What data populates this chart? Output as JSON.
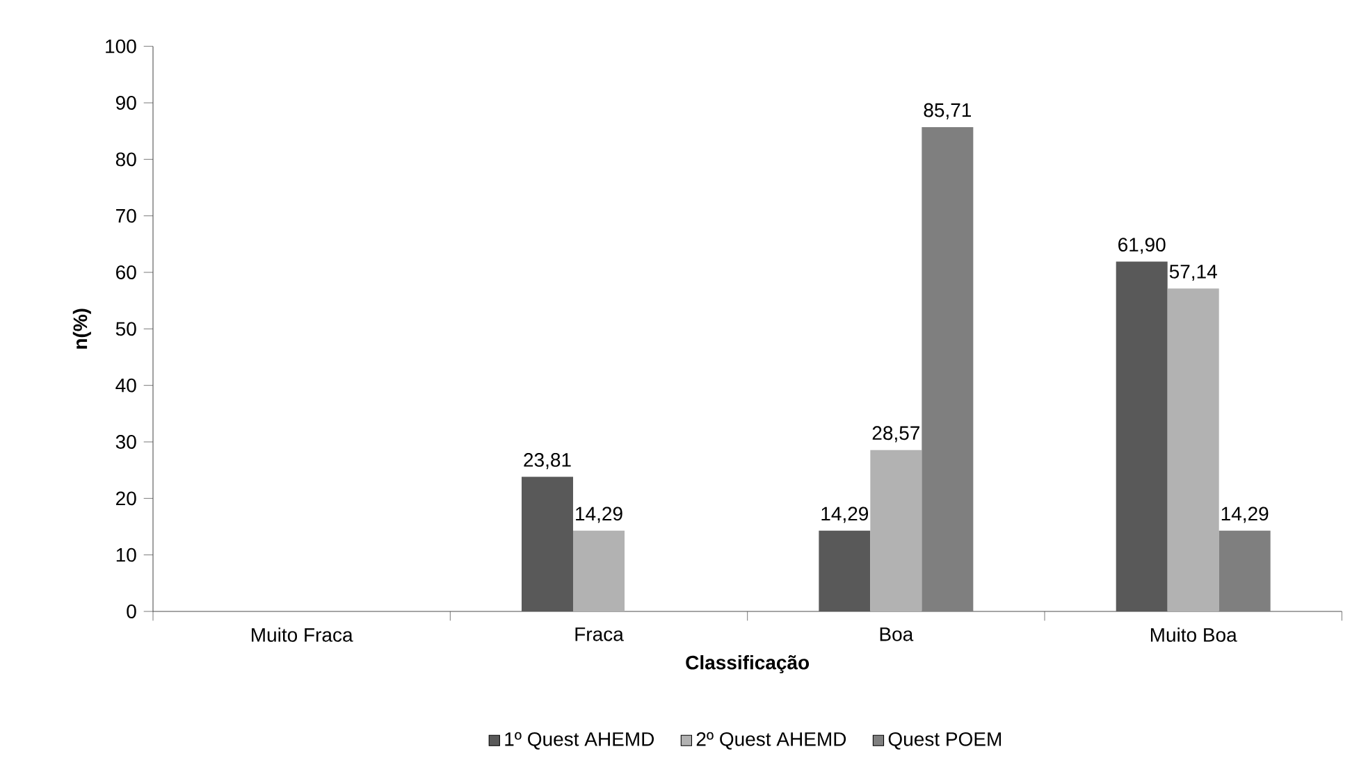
{
  "chart_data": {
    "type": "bar",
    "xlabel": "Classificação",
    "ylabel": "n(%)",
    "categories": [
      "Muito Fraca",
      "Fraca",
      "Boa",
      "Muito Boa"
    ],
    "series": [
      {
        "name": "1º Quest AHEMD",
        "color": "#595959",
        "values": [
          null,
          23.81,
          14.29,
          61.9
        ],
        "value_labels": [
          null,
          "23,81",
          "14,29",
          "61,90"
        ]
      },
      {
        "name": "2º Quest AHEMD",
        "color": "#b2b2b2",
        "values": [
          null,
          14.29,
          28.57,
          57.14
        ],
        "value_labels": [
          null,
          "14,29",
          "28,57",
          "57,14"
        ]
      },
      {
        "name": "Quest POEM",
        "color": "#7f7f7f",
        "values": [
          null,
          null,
          85.71,
          14.29
        ],
        "value_labels": [
          null,
          null,
          "85,71",
          "14,29"
        ]
      }
    ],
    "ylim": [
      0,
      100
    ],
    "yticks": [
      0,
      10,
      20,
      30,
      40,
      50,
      60,
      70,
      80,
      90,
      100
    ],
    "grid": false,
    "legend": "bottom"
  }
}
